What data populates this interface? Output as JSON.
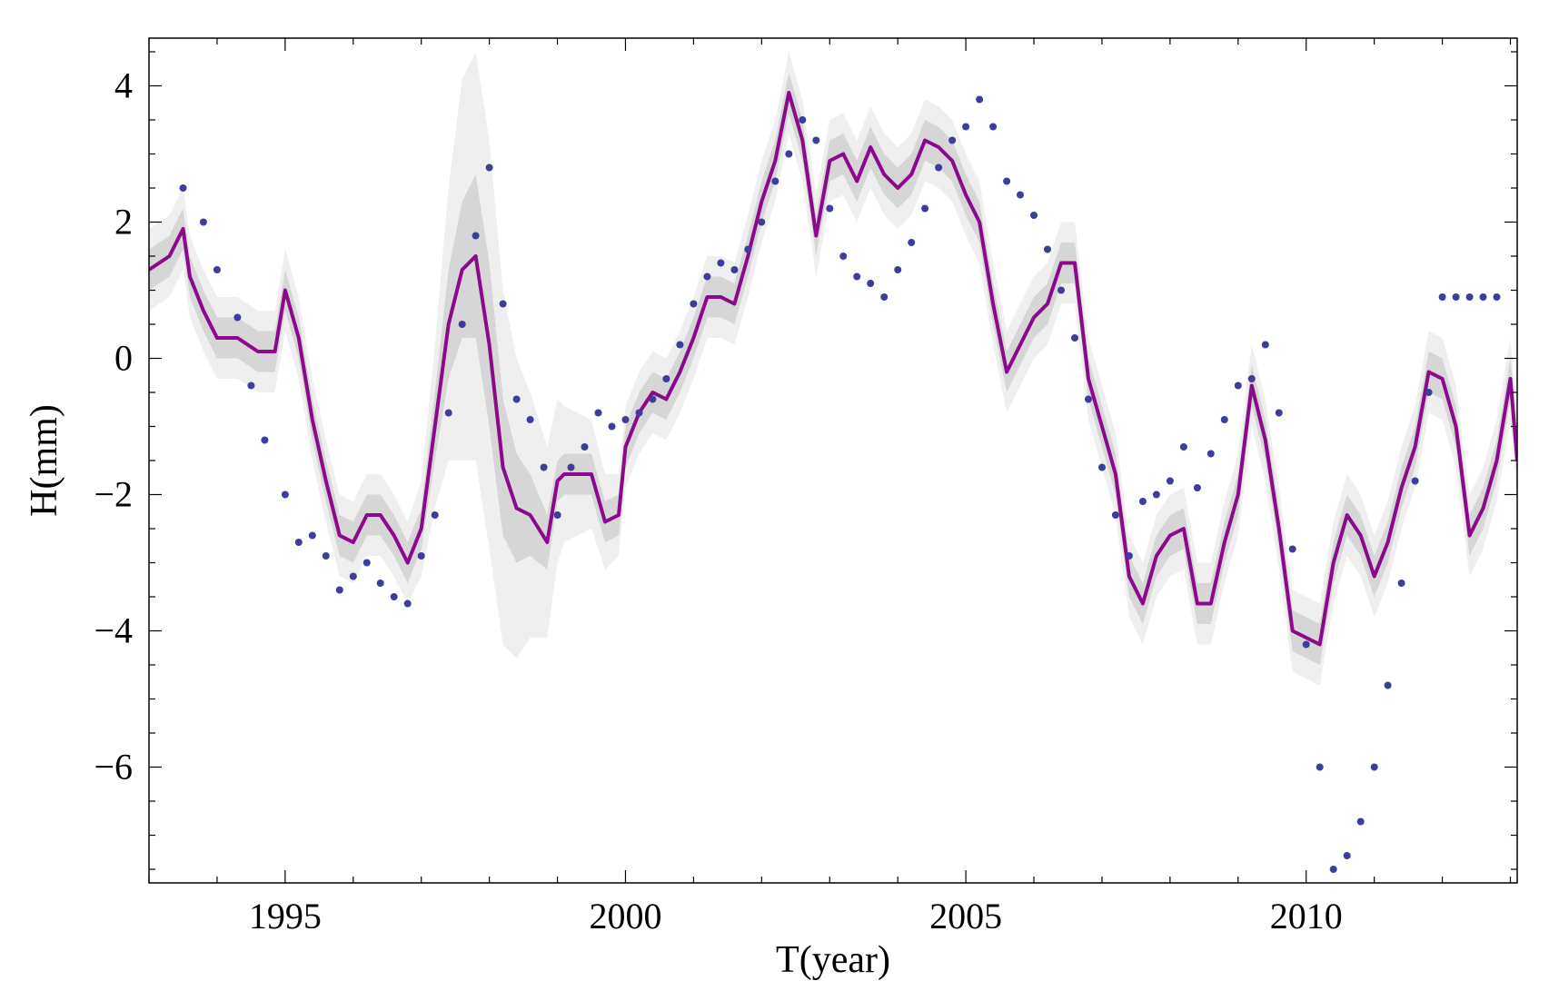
{
  "chart_data": {
    "type": "line",
    "title": "",
    "xlabel": "T(year)",
    "ylabel": "H(mm)",
    "xlim": [
      1993.0,
      2013.1
    ],
    "ylim": [
      -7.7,
      4.7
    ],
    "xticks": [
      1995,
      2000,
      2005,
      2010
    ],
    "yticks": [
      4,
      2,
      0,
      -2,
      -4,
      -6
    ],
    "grid": false,
    "legend": "none",
    "colors": {
      "line": "#8b0a8b",
      "points": "#3d3d9c",
      "band_outer": "#efefef",
      "band_inner": "#d6d6d6"
    },
    "series": [
      {
        "type": "line",
        "x": [
          1993.0,
          1993.3,
          1993.5,
          1993.6,
          1993.8,
          1994.0,
          1994.3,
          1994.6,
          1994.85,
          1995.0,
          1995.2,
          1995.4,
          1995.6,
          1995.8,
          1996.0,
          1996.2,
          1996.4,
          1996.6,
          1996.8,
          1997.0,
          1997.2,
          1997.4,
          1997.6,
          1997.8,
          1998.0,
          1998.2,
          1998.4,
          1998.6,
          1998.85,
          1999.0,
          1999.1,
          1999.3,
          1999.5,
          1999.7,
          1999.9,
          2000.0,
          2000.2,
          2000.4,
          2000.6,
          2000.8,
          2001.0,
          2001.2,
          2001.4,
          2001.6,
          2001.8,
          2002.0,
          2002.2,
          2002.4,
          2002.6,
          2002.8,
          2003.0,
          2003.2,
          2003.4,
          2003.6,
          2003.8,
          2004.0,
          2004.2,
          2004.4,
          2004.6,
          2004.8,
          2005.0,
          2005.2,
          2005.4,
          2005.6,
          2005.8,
          2006.0,
          2006.2,
          2006.4,
          2006.6,
          2006.8,
          2007.0,
          2007.2,
          2007.4,
          2007.6,
          2007.8,
          2008.0,
          2008.2,
          2008.4,
          2008.6,
          2008.8,
          2009.0,
          2009.2,
          2009.4,
          2009.6,
          2009.8,
          2010.0,
          2010.2,
          2010.4,
          2010.6,
          2010.8,
          2011.0,
          2011.2,
          2011.4,
          2011.6,
          2011.8,
          2012.0,
          2012.2,
          2012.4,
          2012.6,
          2012.8,
          2013.0,
          2013.1
        ],
        "y": [
          1.3,
          1.5,
          1.9,
          1.2,
          0.7,
          0.3,
          0.3,
          0.1,
          0.1,
          1.0,
          0.3,
          -0.9,
          -1.8,
          -2.6,
          -2.7,
          -2.3,
          -2.3,
          -2.6,
          -3.0,
          -2.5,
          -1.0,
          0.5,
          1.3,
          1.5,
          0.2,
          -1.6,
          -2.2,
          -2.3,
          -2.7,
          -1.8,
          -1.7,
          -1.7,
          -1.7,
          -2.4,
          -2.3,
          -1.3,
          -0.8,
          -0.5,
          -0.6,
          -0.2,
          0.3,
          0.9,
          0.9,
          0.8,
          1.5,
          2.3,
          2.9,
          3.9,
          3.2,
          1.8,
          2.9,
          3.0,
          2.6,
          3.1,
          2.7,
          2.5,
          2.7,
          3.2,
          3.1,
          2.9,
          2.4,
          2.0,
          0.8,
          -0.2,
          0.2,
          0.6,
          0.8,
          1.4,
          1.4,
          -0.3,
          -1.0,
          -1.7,
          -3.2,
          -3.6,
          -2.9,
          -2.6,
          -2.5,
          -3.6,
          -3.6,
          -2.7,
          -2.0,
          -0.4,
          -1.2,
          -2.5,
          -4.0,
          -4.1,
          -4.2,
          -3.0,
          -2.3,
          -2.6,
          -3.2,
          -2.7,
          -1.9,
          -1.3,
          -0.2,
          -0.3,
          -1.0,
          -2.6,
          -2.2,
          -1.5,
          -0.3,
          -1.5
        ],
        "band_inner_halfwidth": [
          0.3,
          0.3,
          0.3,
          0.3,
          0.3,
          0.3,
          0.3,
          0.3,
          0.3,
          0.3,
          0.3,
          0.3,
          0.3,
          0.3,
          0.3,
          0.3,
          0.3,
          0.3,
          0.3,
          0.3,
          0.5,
          0.8,
          1.0,
          1.2,
          1.2,
          1.0,
          0.8,
          0.6,
          0.4,
          0.3,
          0.3,
          0.3,
          0.3,
          0.3,
          0.3,
          0.3,
          0.3,
          0.3,
          0.3,
          0.3,
          0.3,
          0.3,
          0.3,
          0.3,
          0.3,
          0.3,
          0.3,
          0.3,
          0.3,
          0.3,
          0.3,
          0.3,
          0.3,
          0.3,
          0.3,
          0.3,
          0.3,
          0.3,
          0.3,
          0.3,
          0.3,
          0.3,
          0.3,
          0.3,
          0.3,
          0.3,
          0.3,
          0.3,
          0.3,
          0.3,
          0.3,
          0.3,
          0.3,
          0.3,
          0.3,
          0.3,
          0.3,
          0.3,
          0.3,
          0.3,
          0.3,
          0.3,
          0.3,
          0.3,
          0.3,
          0.3,
          0.3,
          0.3,
          0.3,
          0.3,
          0.3,
          0.3,
          0.3,
          0.3,
          0.3,
          0.3,
          0.3,
          0.3,
          0.3,
          0.3,
          0.3,
          0.3
        ],
        "band_outer_halfwidth": [
          0.6,
          0.6,
          0.6,
          0.6,
          0.6,
          0.6,
          0.6,
          0.6,
          0.6,
          0.6,
          0.6,
          0.6,
          0.6,
          0.6,
          0.6,
          0.6,
          0.6,
          0.6,
          0.6,
          0.7,
          1.2,
          2.0,
          2.8,
          3.0,
          3.0,
          2.6,
          2.2,
          1.8,
          1.4,
          1.2,
          1.0,
          0.9,
          0.8,
          0.7,
          0.6,
          0.6,
          0.6,
          0.6,
          0.6,
          0.6,
          0.6,
          0.6,
          0.6,
          0.6,
          0.6,
          0.6,
          0.6,
          0.6,
          0.6,
          0.6,
          0.6,
          0.6,
          0.6,
          0.6,
          0.6,
          0.6,
          0.6,
          0.6,
          0.6,
          0.6,
          0.6,
          0.6,
          0.6,
          0.6,
          0.6,
          0.6,
          0.6,
          0.6,
          0.6,
          0.6,
          0.6,
          0.6,
          0.6,
          0.6,
          0.6,
          0.6,
          0.6,
          0.6,
          0.6,
          0.6,
          0.6,
          0.6,
          0.6,
          0.6,
          0.6,
          0.6,
          0.6,
          0.6,
          0.6,
          0.6,
          0.6,
          0.6,
          0.6,
          0.6,
          0.6,
          0.6,
          0.6,
          0.6,
          0.6,
          0.6,
          0.6,
          0.6
        ]
      },
      {
        "type": "scatter",
        "x": [
          1993.5,
          1993.8,
          1994.0,
          1994.3,
          1994.5,
          1994.7,
          1995.0,
          1995.2,
          1995.4,
          1995.6,
          1995.8,
          1996.0,
          1996.2,
          1996.4,
          1996.6,
          1996.8,
          1997.0,
          1997.2,
          1997.4,
          1997.6,
          1997.8,
          1998.0,
          1998.2,
          1998.4,
          1998.6,
          1998.8,
          1999.0,
          1999.2,
          1999.4,
          1999.6,
          1999.8,
          2000.0,
          2000.2,
          2000.4,
          2000.6,
          2000.8,
          2001.0,
          2001.2,
          2001.4,
          2001.6,
          2001.8,
          2002.0,
          2002.2,
          2002.4,
          2002.6,
          2002.8,
          2003.0,
          2003.2,
          2003.4,
          2003.6,
          2003.8,
          2004.0,
          2004.2,
          2004.4,
          2004.6,
          2004.8,
          2005.0,
          2005.2,
          2005.4,
          2005.6,
          2005.8,
          2006.0,
          2006.2,
          2006.4,
          2006.6,
          2006.8,
          2007.0,
          2007.2,
          2007.4,
          2007.6,
          2007.8,
          2008.0,
          2008.2,
          2008.4,
          2008.6,
          2008.8,
          2009.0,
          2009.2,
          2009.4,
          2009.6,
          2009.8,
          2010.0,
          2010.2,
          2010.4,
          2010.6,
          2010.8,
          2011.0,
          2011.2,
          2011.4,
          2011.6,
          2011.8,
          2012.0,
          2012.2,
          2012.4,
          2012.6,
          2012.8
        ],
        "y": [
          2.5,
          2.0,
          1.3,
          0.6,
          -0.4,
          -1.2,
          -2.0,
          -2.7,
          -2.6,
          -2.9,
          -3.4,
          -3.2,
          -3.0,
          -3.3,
          -3.5,
          -3.6,
          -2.9,
          -2.3,
          -0.8,
          0.5,
          1.8,
          2.8,
          0.8,
          -0.6,
          -0.9,
          -1.6,
          -2.3,
          -1.6,
          -1.3,
          -0.8,
          -1.0,
          -0.9,
          -0.8,
          -0.6,
          -0.3,
          0.2,
          0.8,
          1.2,
          1.4,
          1.3,
          1.6,
          2.0,
          2.6,
          3.0,
          3.5,
          3.2,
          2.2,
          1.5,
          1.2,
          1.1,
          0.9,
          1.3,
          1.7,
          2.2,
          2.8,
          3.2,
          3.4,
          3.8,
          3.4,
          2.6,
          2.4,
          2.1,
          1.6,
          1.0,
          0.3,
          -0.6,
          -1.6,
          -2.3,
          -2.9,
          -2.1,
          -2.0,
          -1.8,
          -1.3,
          -1.9,
          -1.4,
          -0.9,
          -0.4,
          -0.3,
          0.2,
          -0.8,
          -2.8,
          -4.2,
          -6.0,
          -7.5,
          -7.3,
          -6.8,
          -6.0,
          -4.8,
          -3.3,
          -1.8,
          -0.5,
          0.9,
          0.9,
          0.9,
          0.9,
          0.9
        ]
      }
    ]
  }
}
